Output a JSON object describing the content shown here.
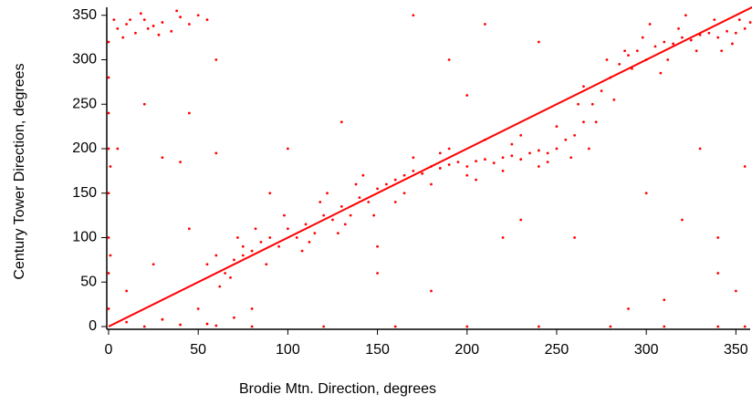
{
  "chart_data": {
    "type": "scatter",
    "xlabel": "Brodie Mtn. Direction, degrees",
    "ylabel": "Century Tower Direction, degrees",
    "xlim": [
      0,
      360
    ],
    "ylim": [
      0,
      360
    ],
    "xticks": [
      0,
      50,
      100,
      150,
      200,
      250,
      300,
      350
    ],
    "yticks": [
      0,
      50,
      100,
      150,
      200,
      250,
      300,
      350
    ],
    "x": [
      5,
      10,
      15,
      20,
      25,
      30,
      35,
      40,
      8,
      18,
      28,
      45,
      12,
      22,
      50,
      55,
      38,
      3,
      0,
      0,
      0,
      0,
      0,
      0,
      0,
      0,
      1,
      1,
      20,
      40,
      60,
      80,
      120,
      160,
      200,
      240,
      280,
      310,
      340,
      355,
      10,
      30,
      55,
      70,
      10,
      25,
      45,
      50,
      30,
      40,
      60,
      20,
      45,
      60,
      75,
      5,
      55,
      60,
      65,
      70,
      75,
      80,
      85,
      90,
      95,
      100,
      105,
      110,
      115,
      120,
      125,
      130,
      135,
      140,
      145,
      150,
      62,
      72,
      88,
      98,
      108,
      118,
      128,
      138,
      148,
      68,
      82,
      112,
      122,
      132,
      142,
      155,
      160,
      165,
      170,
      175,
      180,
      185,
      190,
      195,
      200,
      205,
      210,
      215,
      220,
      225,
      230,
      235,
      240,
      245,
      250,
      160,
      170,
      180,
      190,
      200,
      210,
      220,
      230,
      240,
      250,
      165,
      185,
      205,
      225,
      245,
      255,
      260,
      265,
      270,
      275,
      280,
      285,
      258,
      262,
      268,
      272,
      278,
      282,
      288,
      265,
      290,
      295,
      300,
      305,
      310,
      315,
      320,
      325,
      330,
      335,
      340,
      345,
      350,
      355,
      360,
      292,
      298,
      302,
      312,
      318,
      328,
      338,
      348,
      358,
      308,
      322,
      342,
      352,
      300,
      320,
      340,
      310,
      350,
      330,
      355,
      290,
      340,
      360,
      150,
      180,
      200,
      220,
      240,
      190,
      130,
      170,
      210,
      260,
      150,
      100,
      90,
      230,
      80
    ],
    "series": [
      {
        "color": "#ff0000",
        "values": [
          335,
          340,
          330,
          345,
          338,
          342,
          332,
          348,
          325,
          352,
          328,
          340,
          345,
          335,
          350,
          345,
          355,
          345,
          20,
          60,
          100,
          150,
          200,
          240,
          280,
          320,
          180,
          80,
          0,
          2,
          1,
          0,
          0,
          0,
          0,
          0,
          0,
          0,
          0,
          0,
          5,
          8,
          3,
          10,
          40,
          70,
          110,
          20,
          190,
          185,
          195,
          250,
          240,
          300,
          80,
          200,
          70,
          80,
          60,
          75,
          90,
          85,
          95,
          100,
          90,
          110,
          100,
          115,
          105,
          125,
          120,
          135,
          125,
          145,
          140,
          155,
          45,
          100,
          70,
          125,
          85,
          140,
          105,
          160,
          125,
          55,
          110,
          95,
          150,
          115,
          170,
          160,
          165,
          170,
          175,
          172,
          180,
          178,
          182,
          185,
          180,
          186,
          188,
          184,
          190,
          192,
          188,
          195,
          198,
          195,
          200,
          140,
          190,
          160,
          200,
          170,
          210,
          175,
          215,
          180,
          225,
          150,
          195,
          165,
          205,
          185,
          210,
          215,
          230,
          250,
          265,
          280,
          295,
          190,
          250,
          200,
          230,
          300,
          255,
          310,
          270,
          305,
          310,
          300,
          315,
          320,
          318,
          325,
          322,
          328,
          330,
          325,
          332,
          330,
          335,
          328,
          290,
          325,
          340,
          300,
          335,
          310,
          345,
          318,
          342,
          285,
          350,
          310,
          345,
          150,
          120,
          100,
          30,
          40,
          200,
          180,
          20,
          60,
          100,
          60,
          40,
          260,
          100,
          320,
          300,
          230,
          350,
          340,
          100,
          90,
          200,
          150,
          120,
          20
        ]
      }
    ],
    "line": {
      "color": "#ff0000",
      "x": [
        0,
        360
      ],
      "values": [
        0,
        360
      ]
    }
  }
}
